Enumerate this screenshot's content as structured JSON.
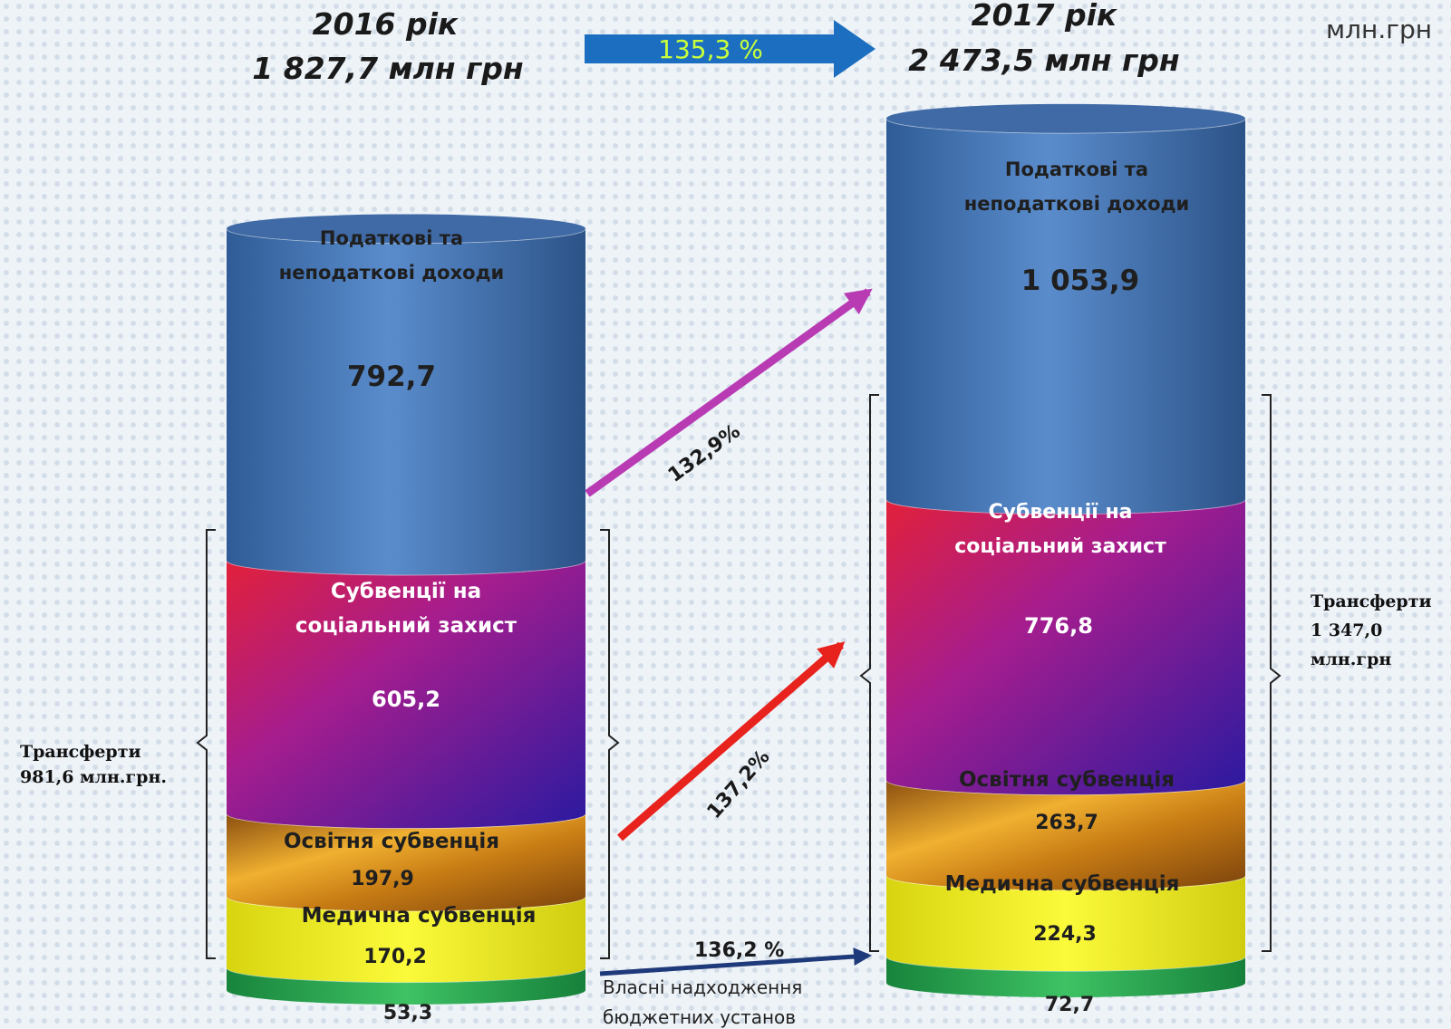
{
  "units": "млн.грн",
  "growth_total": "135,3 %",
  "year_2016": {
    "title": "2016 рік",
    "total": "1 827,7 млн грн"
  },
  "year_2017": {
    "title": "2017 рік",
    "total": "2 473,5 млн грн"
  },
  "chart_data": {
    "type": "bar",
    "stacked": true,
    "categories": [
      "2016",
      "2017"
    ],
    "series": [
      {
        "name": "Власні надходження бюджетних установ",
        "values": [
          53.3,
          72.7
        ],
        "labels": [
          "53,3",
          "72,7"
        ],
        "color": "#2aa84f"
      },
      {
        "name": "Медична субвенція",
        "values": [
          170.2,
          224.3
        ],
        "labels": [
          "170,2",
          "224,3"
        ],
        "color": "#f4f21a"
      },
      {
        "name": "Освітня субвенція",
        "values": [
          197.9,
          263.7
        ],
        "labels": [
          "197,9",
          "263,7"
        ],
        "color": "#c88718"
      },
      {
        "name": "Субвенції на соціальний захист",
        "values": [
          605.2,
          776.8
        ],
        "labels": [
          "605,2",
          "776,8"
        ],
        "color": "#b21f86"
      },
      {
        "name": "Податкові та неподаткові доходи",
        "values": [
          792.7,
          1053.9
        ],
        "labels": [
          "792,7",
          "1 053,9"
        ],
        "color": "#4a78b4"
      }
    ]
  },
  "segment_titles": {
    "tax": [
      "Податкові та",
      "неподаткові доходи"
    ],
    "social": [
      "Субвенції на",
      "соціальний захист"
    ],
    "edu": "Освітня субвенція",
    "med": "Медична субвенція",
    "own": [
      "Власні надходження",
      "бюджетних установ"
    ]
  },
  "transfers_2016": [
    "Трансферти",
    "981,6 млн.грн."
  ],
  "transfers_2017": [
    "Трансферти",
    "1 347,0",
    "млн.грн"
  ],
  "arrows": {
    "tax_growth": "132,9%",
    "transfer_growth": "137,2%",
    "own_growth": "136,2  %"
  },
  "colors": {
    "tax": "#4a78b4",
    "social": "#a0208a",
    "edu": "#c88718",
    "med": "#f4f21a",
    "own": "#2aa84f",
    "arrow_tax": "#b93bb4",
    "arrow_transfer": "#e8221c",
    "arrow_own": "#1f3a7a",
    "header_arrow": "#1c6fc0",
    "header_arrow_text": "#c8ff3c"
  }
}
